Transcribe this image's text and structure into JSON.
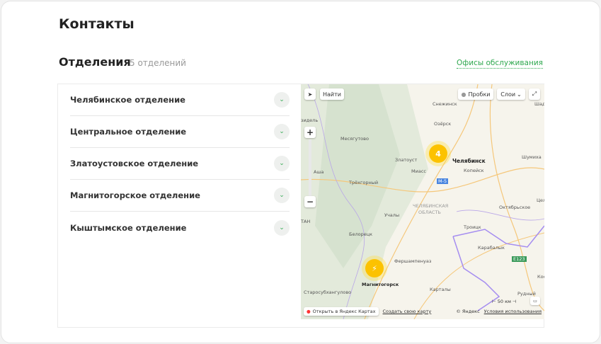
{
  "page": {
    "title": "Контакты"
  },
  "section": {
    "title": "Отделения",
    "count": "5 отделений",
    "offices_link": "Офисы обслуживания"
  },
  "branches": [
    {
      "label": "Челябинское отделение"
    },
    {
      "label": "Центральное отделение"
    },
    {
      "label": "Златоустовское отделение"
    },
    {
      "label": "Магнитогорское отделение"
    },
    {
      "label": "Кыштымское отделение"
    }
  ],
  "map": {
    "find": "Найти",
    "traffic": "Пробки",
    "layers": "Слои",
    "cluster_count": "4",
    "scale": "50 км",
    "open_yandex": "Открыть в Яндекс Картах",
    "create_map": "Создать свою карту",
    "copyright": "© Яндекс",
    "terms": "Условия использования",
    "road_m5": "M-5",
    "road_e123": "E123",
    "cities": [
      "Снежинск",
      "Озёрск",
      "Месягутово",
      "Челябинск",
      "Копейск",
      "Златоуст",
      "Миасс",
      "Аша",
      "Трёхгорный",
      "Шумиха",
      "ЧЕЛЯБИНСКАЯ",
      "ОБЛАСТЬ",
      "Октябрьское",
      "Учалы",
      "Белорецк",
      "Троицк",
      "Карабалык",
      "Фершампенуаз",
      "Магнитогорск",
      "Старосубхангулово",
      "Карталы",
      "Рудный",
      "Шадр",
      "Цел",
      "Кост",
      "зидель",
      "ТАН"
    ]
  },
  "colors": {
    "accent": "#2fa84f",
    "cluster": "#fcc200"
  }
}
